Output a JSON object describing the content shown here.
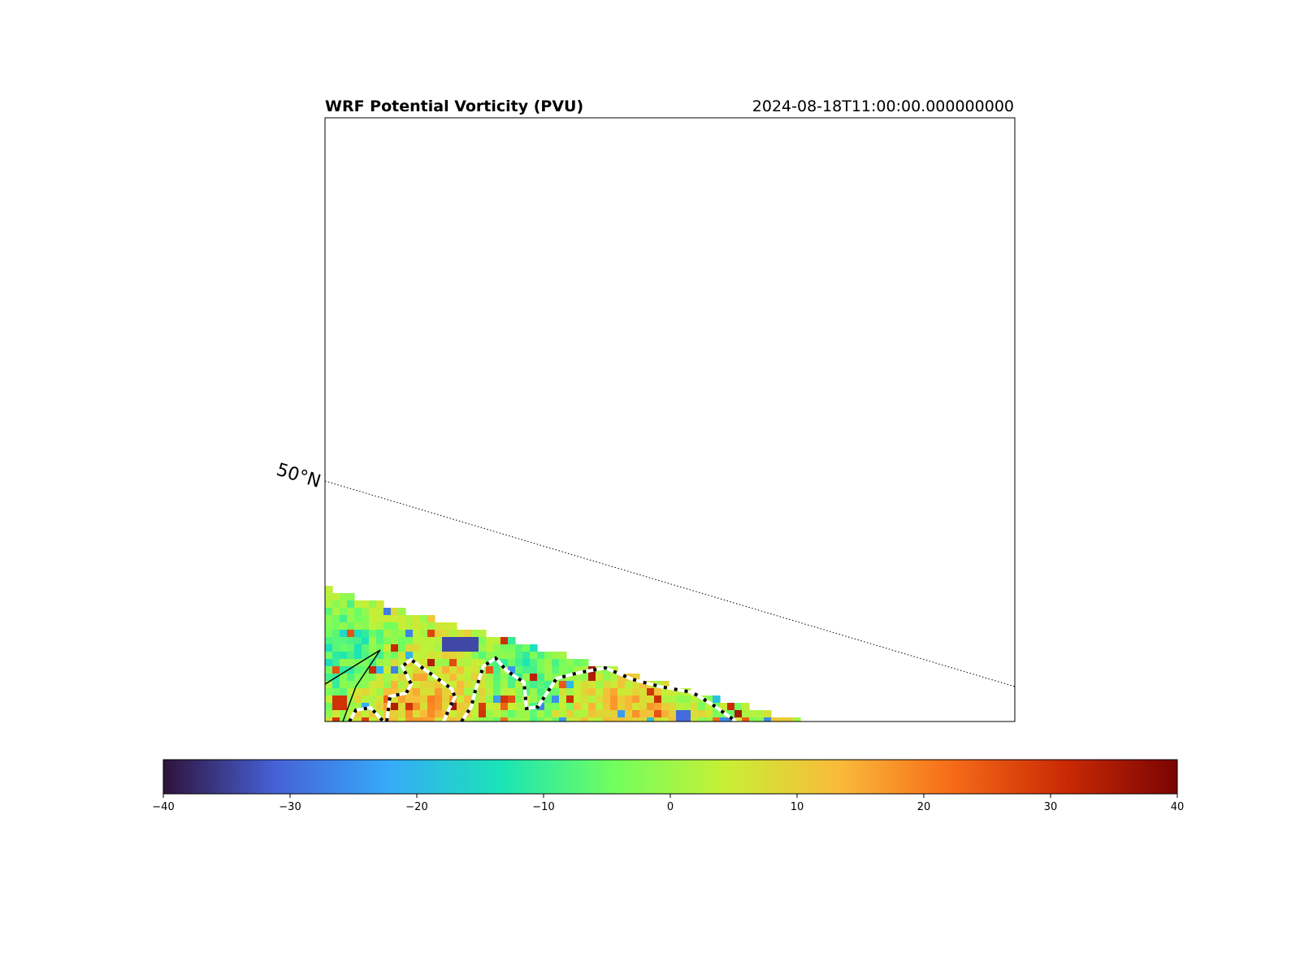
{
  "figure": {
    "title": "WRF Potential Vorticity (PVU)",
    "valid_time": "2024-08-18T11:00:00.000000000"
  },
  "map": {
    "gridlines": [
      {
        "label": "50°N",
        "style": "dotted"
      }
    ],
    "borders": [
      "coastline",
      "state-boundary"
    ],
    "field_colormap": "turbo"
  },
  "colorbar": {
    "vmin": -40,
    "vmax": 40,
    "ticks": [
      -40,
      -30,
      -20,
      -10,
      0,
      10,
      20,
      30,
      40
    ],
    "tick_labels": [
      "−40",
      "−30",
      "−20",
      "−10",
      "0",
      "10",
      "20",
      "30",
      "40"
    ],
    "colormap": [
      "#30123b",
      "#4662d7",
      "#36aaf9",
      "#1ae4b6",
      "#72fe5e",
      "#c8ef34",
      "#faba39",
      "#f66b19",
      "#ca2a04",
      "#7a0403"
    ]
  }
}
